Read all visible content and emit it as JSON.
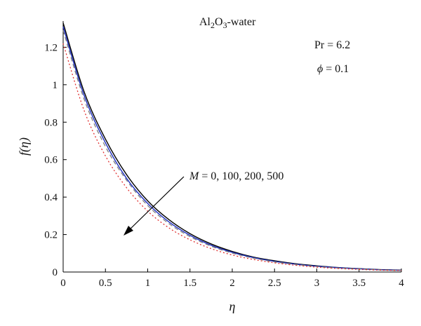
{
  "chart_data": {
    "type": "line",
    "xlabel": "η",
    "ylabel": "f(η)",
    "xlim": [
      0,
      4
    ],
    "ylim": [
      0,
      1.34
    ],
    "xticks": [
      "0",
      "0.5",
      "1",
      "1.5",
      "2",
      "2.5",
      "3",
      "3.5",
      "4"
    ],
    "yticks": [
      "0",
      "0.2",
      "0.4",
      "0.6",
      "0.8",
      "1",
      "1.2"
    ],
    "grid": false,
    "x": [
      0,
      0.25,
      0.5,
      0.75,
      1,
      1.25,
      1.5,
      1.75,
      2,
      2.25,
      2.5,
      2.75,
      3,
      3.25,
      3.5,
      3.75,
      4
    ],
    "series": [
      {
        "name": "M = 0",
        "style": "solid",
        "color": "#000000",
        "values": [
          1.33,
          0.96,
          0.71,
          0.52,
          0.38,
          0.28,
          0.205,
          0.15,
          0.11,
          0.08,
          0.06,
          0.044,
          0.033,
          0.024,
          0.018,
          0.013,
          0.01
        ]
      },
      {
        "name": "M = 100",
        "style": "solid",
        "color": "#1f2fbf",
        "values": [
          1.31,
          0.94,
          0.69,
          0.5,
          0.366,
          0.268,
          0.196,
          0.143,
          0.105,
          0.077,
          0.057,
          0.042,
          0.031,
          0.023,
          0.017,
          0.012,
          0.009
        ]
      },
      {
        "name": "M = 200",
        "style": "dashed",
        "color": "#7f7f7f",
        "values": [
          1.29,
          0.92,
          0.67,
          0.49,
          0.355,
          0.259,
          0.189,
          0.138,
          0.101,
          0.074,
          0.054,
          0.04,
          0.029,
          0.021,
          0.016,
          0.011,
          0.008
        ]
      },
      {
        "name": "M = 500",
        "style": "dotted",
        "color": "#e03030",
        "values": [
          1.22,
          0.86,
          0.62,
          0.45,
          0.325,
          0.236,
          0.172,
          0.125,
          0.091,
          0.067,
          0.049,
          0.036,
          0.026,
          0.019,
          0.014,
          0.01,
          0.008
        ]
      }
    ],
    "annotations": {
      "fluid_base": "Al",
      "fluid_sub1": "2",
      "fluid_mid": "O",
      "fluid_sub2": "3",
      "fluid_tail": "-water",
      "pr": "Pr = 6.2",
      "phi_sym": "ϕ",
      "phi_val": " = 0.1",
      "m_sym": "M",
      "m_values": " = 0, 100, 200, 500"
    }
  }
}
